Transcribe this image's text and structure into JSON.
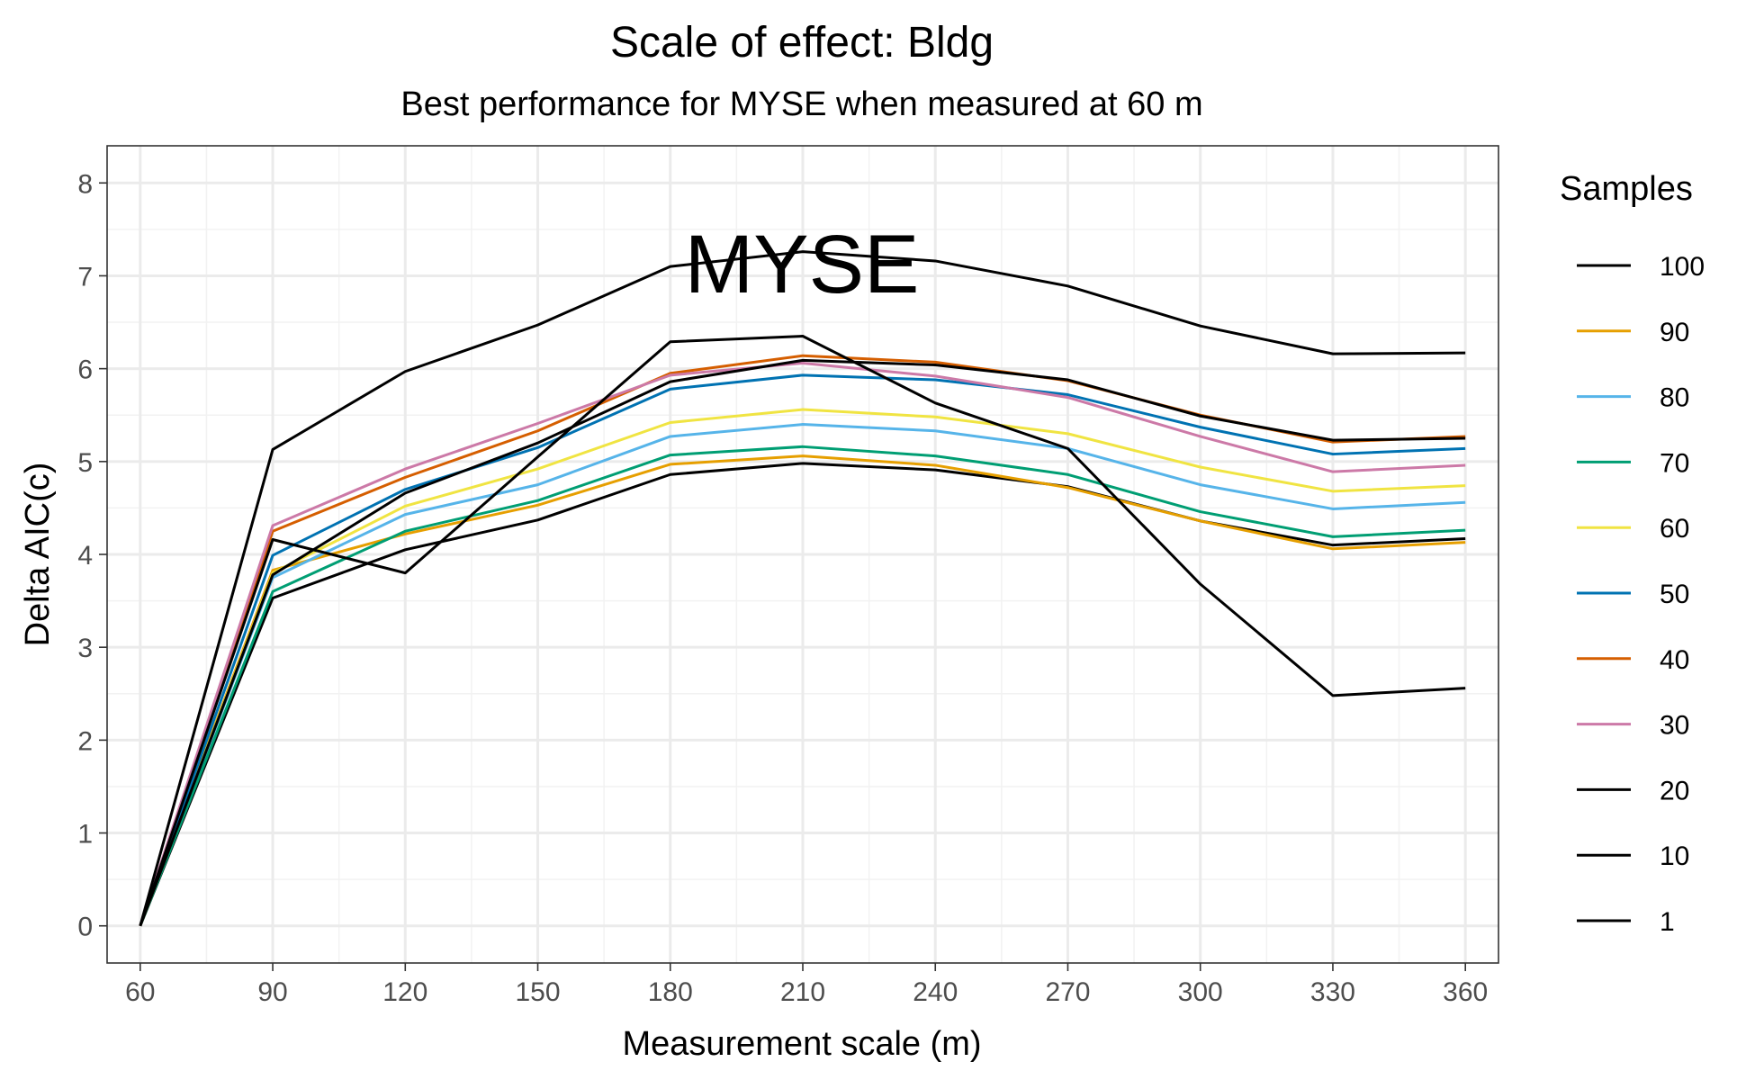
{
  "chart_data": {
    "type": "line",
    "title": "Scale of effect: Bldg",
    "subtitle": "Best performance for MYSE when measured at 60 m",
    "xlabel": "Measurement scale (m)",
    "ylabel": "Delta AIC(c)",
    "annotation": "MYSE",
    "x": [
      60,
      90,
      120,
      150,
      180,
      210,
      240,
      270,
      300,
      330,
      360
    ],
    "xlim": [
      52.5,
      367.5
    ],
    "ylim": [
      -0.4,
      8.4
    ],
    "x_ticks": [
      "60",
      "90",
      "120",
      "150",
      "180",
      "210",
      "240",
      "270",
      "300",
      "330",
      "360"
    ],
    "y_ticks": [
      "0",
      "1",
      "2",
      "3",
      "4",
      "5",
      "6",
      "7",
      "8"
    ],
    "grid": true,
    "legend": {
      "title": "Samples",
      "position": "right"
    },
    "series": [
      {
        "name": "100",
        "color": "#000000",
        "values": [
          0,
          3.53,
          4.05,
          4.37,
          4.86,
          4.98,
          4.91,
          4.73,
          4.36,
          4.1,
          4.17
        ]
      },
      {
        "name": "90",
        "color": "#E69F00",
        "values": [
          0,
          3.83,
          4.22,
          4.53,
          4.97,
          5.06,
          4.96,
          4.72,
          4.36,
          4.06,
          4.13
        ]
      },
      {
        "name": "80",
        "color": "#56B4E9",
        "values": [
          0,
          3.75,
          4.43,
          4.75,
          5.27,
          5.4,
          5.33,
          5.14,
          4.75,
          4.49,
          4.56
        ]
      },
      {
        "name": "70",
        "color": "#009E73",
        "values": [
          0,
          3.6,
          4.25,
          4.58,
          5.07,
          5.16,
          5.06,
          4.86,
          4.46,
          4.19,
          4.26
        ]
      },
      {
        "name": "60",
        "color": "#F0E442",
        "values": [
          0,
          3.8,
          4.52,
          4.92,
          5.42,
          5.56,
          5.48,
          5.3,
          4.94,
          4.68,
          4.74
        ]
      },
      {
        "name": "50",
        "color": "#0072B2",
        "values": [
          0,
          3.99,
          4.7,
          5.15,
          5.78,
          5.93,
          5.88,
          5.72,
          5.37,
          5.08,
          5.14
        ]
      },
      {
        "name": "40",
        "color": "#D55E00",
        "values": [
          0,
          4.25,
          4.83,
          5.33,
          5.95,
          6.14,
          6.07,
          5.87,
          5.5,
          5.21,
          5.27
        ]
      },
      {
        "name": "30",
        "color": "#CC79A7",
        "values": [
          0,
          4.31,
          4.92,
          5.41,
          5.93,
          6.06,
          5.92,
          5.69,
          5.27,
          4.89,
          4.96
        ]
      },
      {
        "name": "20",
        "color": "#000000",
        "values": [
          0,
          4.16,
          3.8,
          5.05,
          6.29,
          6.35,
          5.63,
          5.14,
          3.68,
          2.48,
          2.56
        ]
      },
      {
        "name": "10",
        "color": "#000000",
        "values": [
          0,
          3.78,
          4.66,
          5.2,
          5.86,
          6.09,
          6.04,
          5.88,
          5.49,
          5.23,
          5.25
        ]
      },
      {
        "name": "1",
        "color": "#000000",
        "values": [
          0,
          5.13,
          5.97,
          6.47,
          7.1,
          7.26,
          7.16,
          6.89,
          6.46,
          6.16,
          6.17
        ]
      }
    ]
  }
}
